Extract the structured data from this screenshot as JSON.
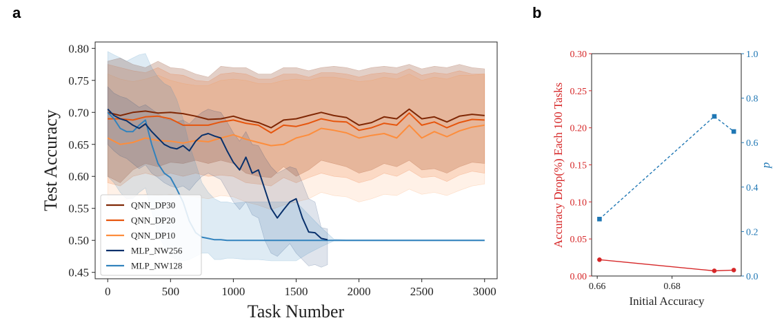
{
  "panels": {
    "a": "a",
    "b": "b"
  },
  "chart_data": [
    {
      "type": "line",
      "panel": "a",
      "xlabel": "Task Number",
      "ylabel": "Test Accuracy",
      "xlim": [
        -100,
        3100
      ],
      "ylim": [
        0.44,
        0.81
      ],
      "xticks": [
        0,
        500,
        1000,
        1500,
        2000,
        2500,
        3000
      ],
      "xtick_labels": [
        "0",
        "500",
        "1000",
        "1500",
        "2000",
        "2500",
        "3000"
      ],
      "yticks": [
        0.45,
        0.5,
        0.55,
        0.6,
        0.65,
        0.7,
        0.75,
        0.8
      ],
      "ytick_labels": [
        "0.45",
        "0.50",
        "0.55",
        "0.60",
        "0.65",
        "0.70",
        "0.75",
        "0.80"
      ],
      "legend_position": "lower-left",
      "series": [
        {
          "name": "QNN_DP30",
          "color": "#7f2704",
          "band_opacity": 0.22,
          "x": [
            0,
            100,
            200,
            300,
            400,
            500,
            600,
            700,
            800,
            900,
            1000,
            1100,
            1200,
            1300,
            1400,
            1500,
            1600,
            1700,
            1800,
            1900,
            2000,
            2100,
            2200,
            2300,
            2400,
            2500,
            2600,
            2700,
            2800,
            2900,
            3000
          ],
          "values": [
            0.7,
            0.695,
            0.7,
            0.702,
            0.699,
            0.7,
            0.698,
            0.694,
            0.689,
            0.69,
            0.694,
            0.688,
            0.684,
            0.676,
            0.688,
            0.69,
            0.695,
            0.7,
            0.695,
            0.692,
            0.68,
            0.684,
            0.693,
            0.69,
            0.705,
            0.69,
            0.693,
            0.685,
            0.694,
            0.697,
            0.695
          ],
          "upper": [
            0.78,
            0.785,
            0.775,
            0.77,
            0.78,
            0.77,
            0.768,
            0.76,
            0.755,
            0.772,
            0.77,
            0.77,
            0.76,
            0.76,
            0.77,
            0.77,
            0.765,
            0.77,
            0.772,
            0.77,
            0.765,
            0.77,
            0.772,
            0.77,
            0.775,
            0.768,
            0.772,
            0.77,
            0.775,
            0.77,
            0.768
          ],
          "lower": [
            0.6,
            0.59,
            0.61,
            0.62,
            0.615,
            0.622,
            0.62,
            0.625,
            0.62,
            0.625,
            0.62,
            0.605,
            0.6,
            0.598,
            0.615,
            0.6,
            0.61,
            0.625,
            0.62,
            0.615,
            0.605,
            0.61,
            0.62,
            0.615,
            0.625,
            0.61,
            0.612,
            0.605,
            0.615,
            0.622,
            0.62
          ]
        },
        {
          "name": "QNN_DP20",
          "color": "#e6550d",
          "band_opacity": 0.16,
          "x": [
            0,
            100,
            200,
            300,
            400,
            500,
            600,
            700,
            800,
            900,
            1000,
            1100,
            1200,
            1300,
            1400,
            1500,
            1600,
            1700,
            1800,
            1900,
            2000,
            2100,
            2200,
            2300,
            2400,
            2500,
            2600,
            2700,
            2800,
            2900,
            3000
          ],
          "values": [
            0.69,
            0.69,
            0.688,
            0.693,
            0.694,
            0.69,
            0.68,
            0.68,
            0.68,
            0.685,
            0.688,
            0.683,
            0.68,
            0.668,
            0.68,
            0.678,
            0.683,
            0.69,
            0.686,
            0.685,
            0.672,
            0.676,
            0.683,
            0.68,
            0.699,
            0.68,
            0.685,
            0.676,
            0.684,
            0.689,
            0.688
          ],
          "upper": [
            0.775,
            0.77,
            0.765,
            0.762,
            0.77,
            0.76,
            0.758,
            0.75,
            0.748,
            0.76,
            0.762,
            0.76,
            0.752,
            0.752,
            0.76,
            0.76,
            0.755,
            0.762,
            0.762,
            0.76,
            0.755,
            0.76,
            0.762,
            0.76,
            0.768,
            0.758,
            0.762,
            0.76,
            0.765,
            0.76,
            0.76
          ],
          "lower": [
            0.59,
            0.585,
            0.6,
            0.605,
            0.6,
            0.605,
            0.6,
            0.605,
            0.6,
            0.602,
            0.6,
            0.59,
            0.588,
            0.585,
            0.598,
            0.59,
            0.598,
            0.605,
            0.6,
            0.598,
            0.59,
            0.595,
            0.605,
            0.6,
            0.61,
            0.598,
            0.6,
            0.592,
            0.602,
            0.608,
            0.605
          ]
        },
        {
          "name": "QNN_DP10",
          "color": "#fd8d3c",
          "band_opacity": 0.12,
          "x": [
            0,
            100,
            200,
            300,
            400,
            500,
            600,
            700,
            800,
            900,
            1000,
            1100,
            1200,
            1300,
            1400,
            1500,
            1600,
            1700,
            1800,
            1900,
            2000,
            2100,
            2200,
            2300,
            2400,
            2500,
            2600,
            2700,
            2800,
            2900,
            3000
          ],
          "values": [
            0.66,
            0.65,
            0.653,
            0.66,
            0.656,
            0.655,
            0.652,
            0.656,
            0.654,
            0.66,
            0.665,
            0.658,
            0.653,
            0.648,
            0.65,
            0.66,
            0.665,
            0.675,
            0.672,
            0.668,
            0.66,
            0.664,
            0.667,
            0.66,
            0.68,
            0.66,
            0.67,
            0.662,
            0.671,
            0.677,
            0.68
          ],
          "upper": [
            0.76,
            0.752,
            0.748,
            0.752,
            0.758,
            0.75,
            0.745,
            0.742,
            0.742,
            0.75,
            0.752,
            0.75,
            0.745,
            0.745,
            0.75,
            0.752,
            0.75,
            0.755,
            0.755,
            0.752,
            0.748,
            0.75,
            0.755,
            0.752,
            0.76,
            0.75,
            0.755,
            0.752,
            0.758,
            0.758,
            0.76
          ],
          "lower": [
            0.565,
            0.56,
            0.568,
            0.572,
            0.57,
            0.572,
            0.57,
            0.568,
            0.565,
            0.57,
            0.568,
            0.56,
            0.555,
            0.548,
            0.555,
            0.56,
            0.565,
            0.575,
            0.57,
            0.568,
            0.56,
            0.565,
            0.572,
            0.57,
            0.58,
            0.572,
            0.575,
            0.57,
            0.578,
            0.585,
            0.588
          ]
        },
        {
          "name": "MLP_NW256",
          "color": "#08306b",
          "band_opacity": 0.13,
          "x": [
            0,
            50,
            100,
            150,
            200,
            250,
            300,
            350,
            400,
            450,
            500,
            550,
            600,
            650,
            700,
            750,
            800,
            850,
            900,
            950,
            1000,
            1050,
            1100,
            1150,
            1200,
            1250,
            1300,
            1350,
            1400,
            1450,
            1500,
            1550,
            1600,
            1650,
            1700,
            1750
          ],
          "values": [
            0.705,
            0.695,
            0.69,
            0.687,
            0.68,
            0.675,
            0.682,
            0.67,
            0.66,
            0.65,
            0.645,
            0.643,
            0.648,
            0.64,
            0.655,
            0.664,
            0.667,
            0.663,
            0.66,
            0.64,
            0.622,
            0.61,
            0.63,
            0.605,
            0.61,
            0.58,
            0.55,
            0.535,
            0.548,
            0.56,
            0.565,
            0.535,
            0.513,
            0.512,
            0.503,
            0.501
          ],
          "upper": [
            0.74,
            0.73,
            0.725,
            0.722,
            0.715,
            0.708,
            0.712,
            0.705,
            0.698,
            0.69,
            0.688,
            0.685,
            0.688,
            0.682,
            0.692,
            0.7,
            0.705,
            0.702,
            0.7,
            0.685,
            0.668,
            0.655,
            0.67,
            0.65,
            0.648,
            0.63,
            0.615,
            0.605,
            0.61,
            0.615,
            0.612,
            0.59,
            0.565,
            0.56,
            0.52,
            0.518
          ],
          "lower": [
            0.65,
            0.64,
            0.632,
            0.628,
            0.62,
            0.612,
            0.618,
            0.605,
            0.598,
            0.59,
            0.585,
            0.582,
            0.585,
            0.578,
            0.59,
            0.6,
            0.605,
            0.6,
            0.595,
            0.578,
            0.56,
            0.548,
            0.56,
            0.54,
            0.535,
            0.5,
            0.48,
            0.475,
            0.485,
            0.495,
            0.48,
            0.47,
            0.46,
            0.462,
            0.458,
            0.462
          ]
        },
        {
          "name": "MLP_NW128",
          "color": "#3182bd",
          "band_opacity": 0.16,
          "x": [
            0,
            50,
            100,
            150,
            200,
            250,
            300,
            350,
            400,
            450,
            500,
            550,
            600,
            650,
            700,
            750,
            800,
            850,
            900,
            950,
            1000,
            1100,
            1200,
            1300,
            1400,
            1500,
            1600,
            1700,
            1800,
            1900,
            2000,
            2100,
            2200,
            2300,
            2400,
            2500,
            2600,
            2700,
            2800,
            2900,
            3000
          ],
          "values": [
            0.7,
            0.69,
            0.675,
            0.67,
            0.67,
            0.68,
            0.688,
            0.65,
            0.62,
            0.605,
            0.598,
            0.58,
            0.56,
            0.53,
            0.512,
            0.505,
            0.503,
            0.501,
            0.501,
            0.5,
            0.5,
            0.5,
            0.5,
            0.5,
            0.5,
            0.5,
            0.5,
            0.5,
            0.5,
            0.5,
            0.5,
            0.5,
            0.5,
            0.5,
            0.5,
            0.5,
            0.5,
            0.5,
            0.5,
            0.5,
            0.5
          ],
          "upper": [
            0.795,
            0.79,
            0.785,
            0.78,
            0.785,
            0.79,
            0.792,
            0.77,
            0.755,
            0.745,
            0.74,
            0.72,
            0.69,
            0.65,
            0.62,
            0.59,
            0.575,
            0.565,
            0.56,
            0.56,
            0.558,
            0.56,
            0.56,
            0.56,
            0.56,
            0.56,
            0.54,
            0.52,
            0.502,
            0.501,
            0.501,
            0.501,
            0.501,
            0.501,
            0.501,
            0.501,
            0.501,
            0.501,
            0.501,
            0.501,
            0.501
          ],
          "lower": [
            0.6,
            0.59,
            0.575,
            0.565,
            0.565,
            0.575,
            0.582,
            0.545,
            0.51,
            0.49,
            0.475,
            0.47,
            0.468,
            0.47,
            0.475,
            0.48,
            0.48,
            0.47,
            0.47,
            0.472,
            0.472,
            0.47,
            0.47,
            0.468,
            0.468,
            0.468,
            0.48,
            0.49,
            0.499,
            0.499,
            0.499,
            0.499,
            0.499,
            0.499,
            0.499,
            0.499,
            0.499,
            0.499,
            0.499,
            0.499,
            0.499
          ]
        }
      ]
    },
    {
      "type": "line",
      "panel": "b",
      "xlabel": "Initial Accuracy",
      "ylabel": "Accuracy Drop(%) Each 100 Tasks",
      "ylabel_right": "p",
      "xlim": [
        0.6585,
        0.6985
      ],
      "ylim": [
        0,
        0.3
      ],
      "ylim_right": [
        0,
        1.0
      ],
      "xticks": [
        0.66,
        0.68
      ],
      "xtick_labels": [
        "0.66",
        "0.68"
      ],
      "yticks": [
        0.0,
        0.05,
        0.1,
        0.15,
        0.2,
        0.25,
        0.3
      ],
      "ytick_labels": [
        "0.00",
        "0.05",
        "0.10",
        "0.15",
        "0.20",
        "0.25",
        "0.30"
      ],
      "yticks_right": [
        0.0,
        0.2,
        0.4,
        0.6,
        0.8,
        1.0
      ],
      "ytick_labels_right": [
        "0.0",
        "0.2",
        "0.4",
        "0.6",
        "0.8",
        "1.0"
      ],
      "left_color": "#d62728",
      "right_color": "#1f77b4",
      "series": [
        {
          "name": "Accuracy Drop",
          "axis": "left",
          "color": "#d62728",
          "x": [
            0.6606,
            0.6913,
            0.6965
          ],
          "values": [
            0.022,
            0.007,
            0.008
          ]
        },
        {
          "name": "p",
          "axis": "right",
          "color": "#1f77b4",
          "x": [
            0.6606,
            0.6913,
            0.6965
          ],
          "values": [
            0.256,
            0.718,
            0.65
          ]
        }
      ]
    }
  ]
}
